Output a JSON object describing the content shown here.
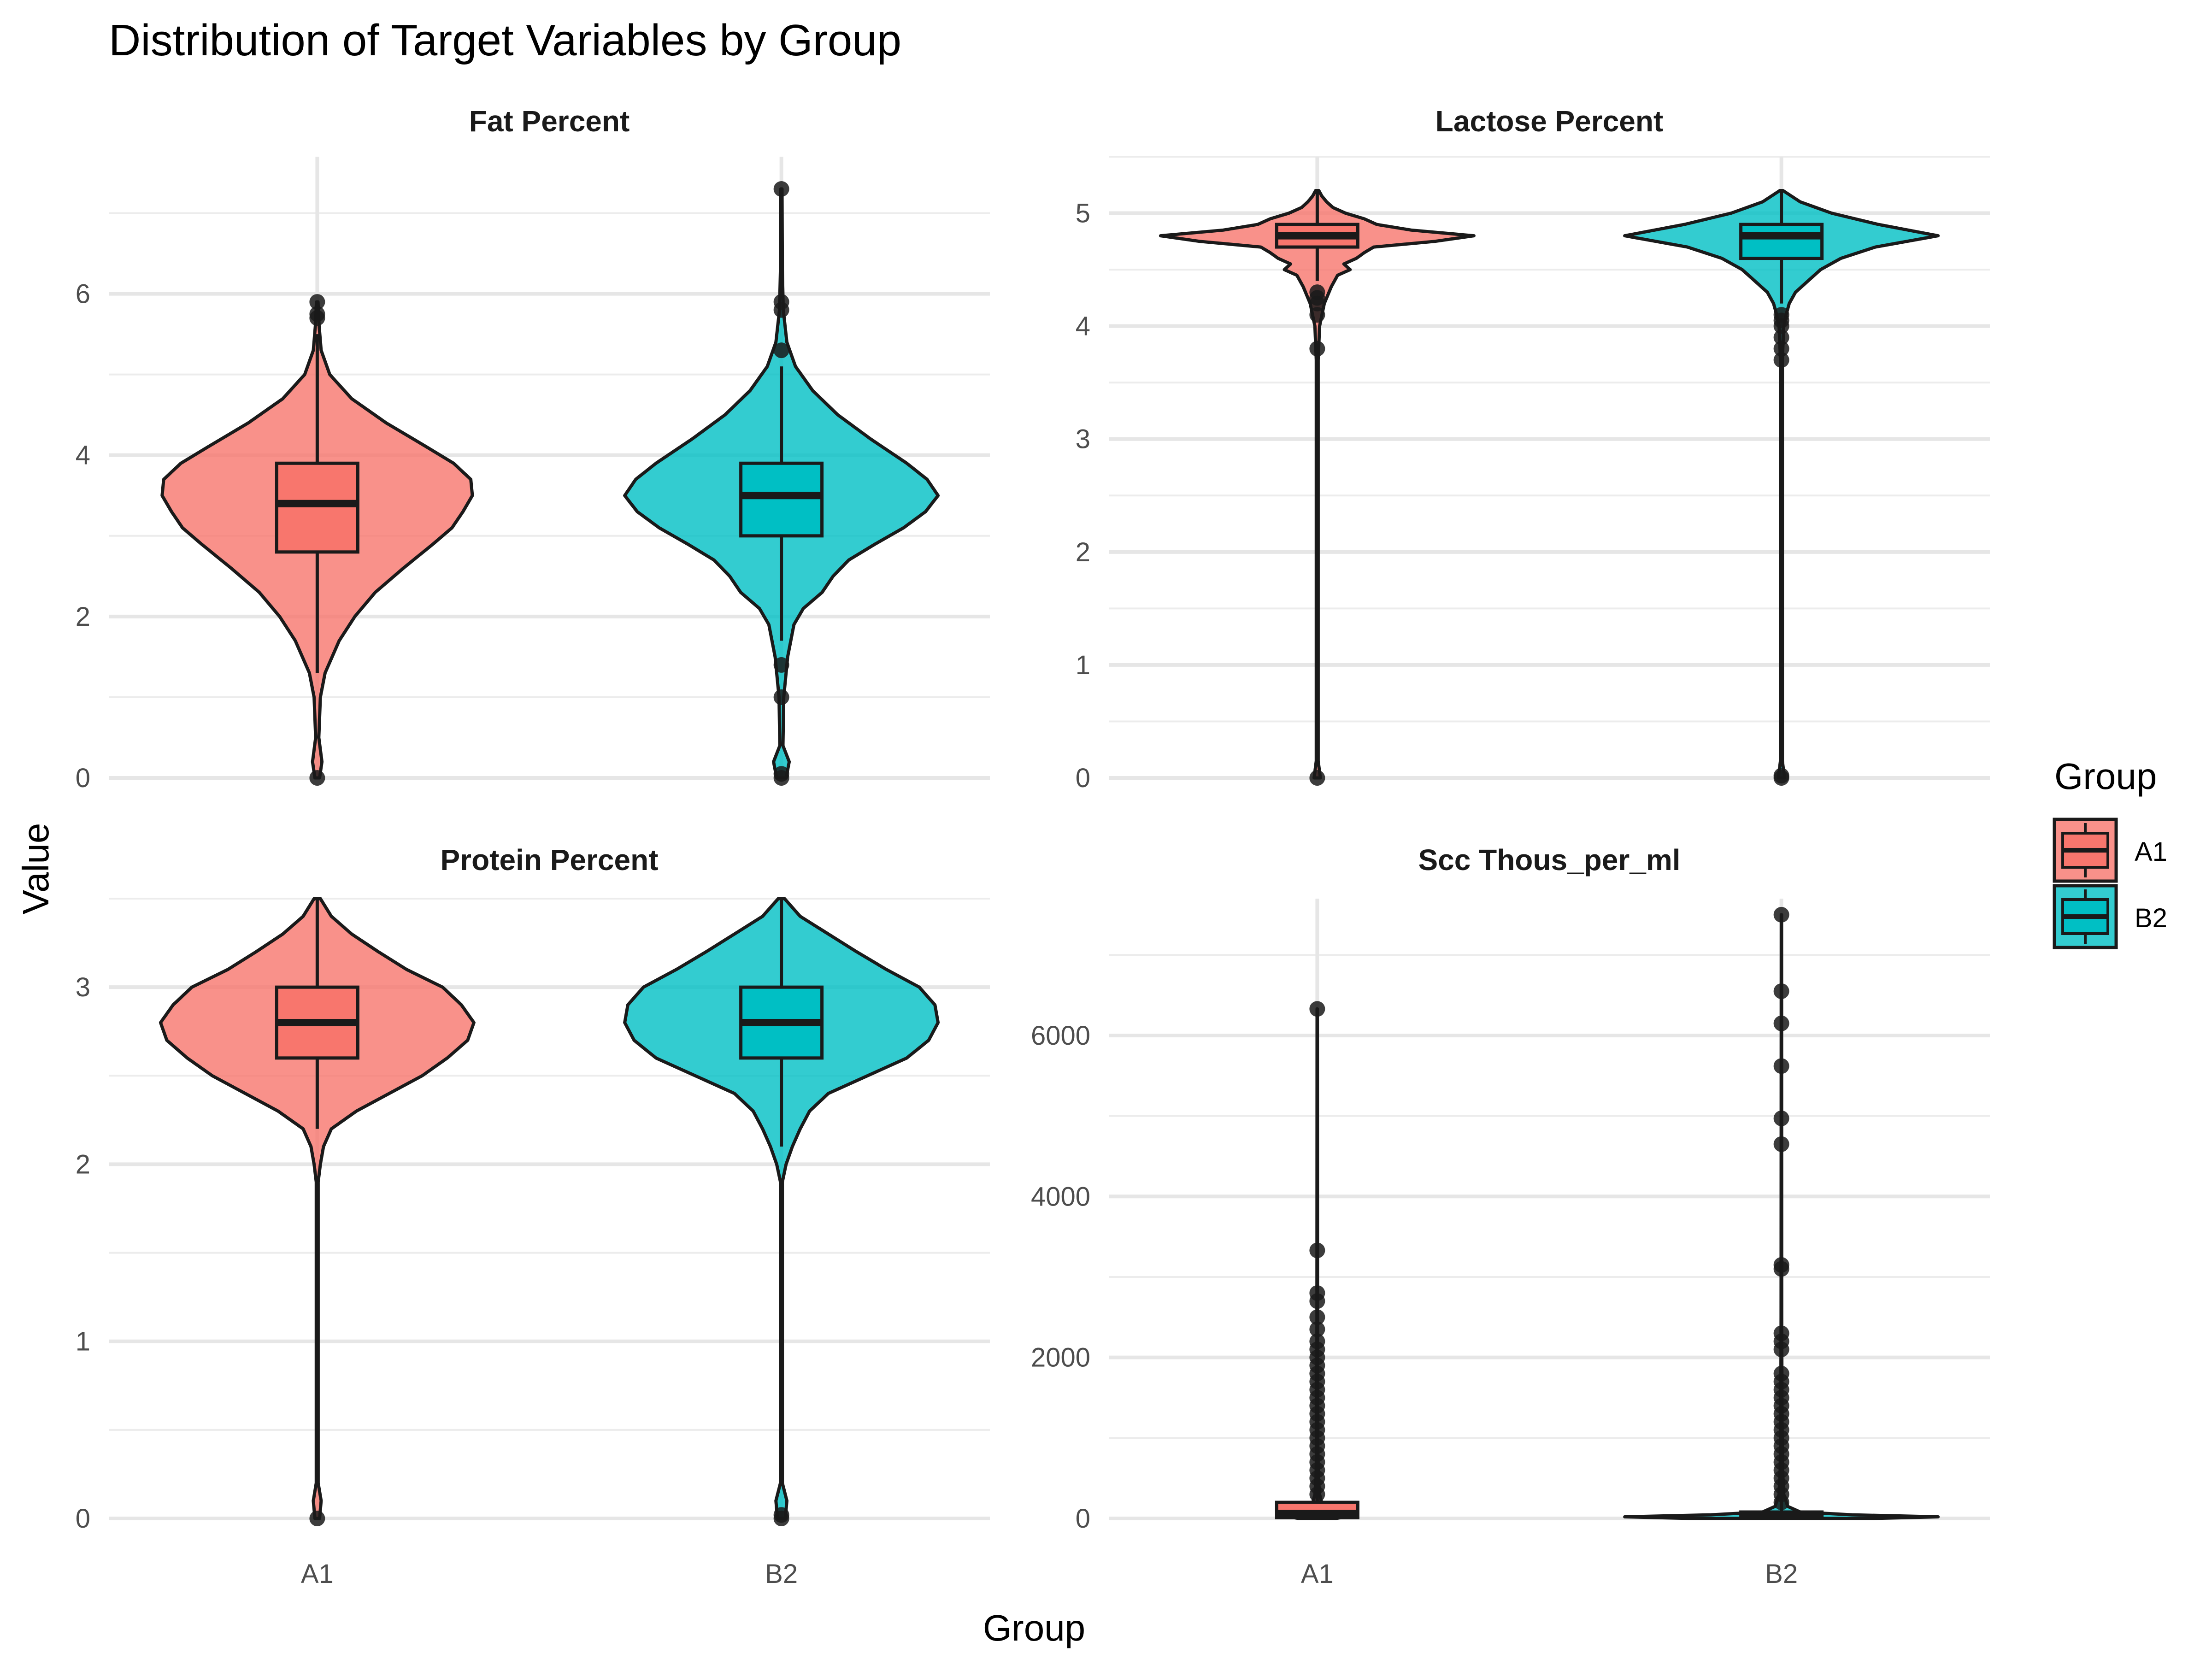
{
  "title": "Distribution of Target Variables by Group",
  "xlabel": "Group",
  "ylabel": "Value",
  "legend": {
    "title": "Group",
    "position": "right",
    "items": [
      {
        "label": "A1",
        "fill": "#F8766D"
      },
      {
        "label": "B2",
        "fill": "#00BFC4"
      }
    ]
  },
  "colors": {
    "A1": "#F8766D",
    "B2": "#00BFC4",
    "outline": "#1a1a1a",
    "grid": "#ebebeb"
  },
  "chart_data": {
    "type": "violin",
    "categories": [
      "A1",
      "B2"
    ],
    "grid": true,
    "facets": [
      {
        "title": "Fat Percent",
        "ylim": [
          0,
          7.7
        ],
        "yticks": [
          0,
          2,
          4,
          6
        ],
        "ytick_labels": [
          "0",
          "2",
          "4",
          "6"
        ],
        "show_y": true,
        "show_x": false,
        "groups": [
          {
            "name": "A1",
            "min": 0.0,
            "max": 5.9,
            "q1": 2.8,
            "median": 3.4,
            "q3": 3.9,
            "whisker_low": 1.3,
            "whisker_high": 5.5,
            "outliers": [
              0.0,
              5.7,
              5.75,
              5.9
            ],
            "density": [
              [
                0,
                0.015
              ],
              [
                0.2,
                0.03
              ],
              [
                0.5,
                0.01
              ],
              [
                1.0,
                0.02
              ],
              [
                1.3,
                0.05
              ],
              [
                1.7,
                0.14
              ],
              [
                2.0,
                0.24
              ],
              [
                2.3,
                0.37
              ],
              [
                2.6,
                0.55
              ],
              [
                2.9,
                0.74
              ],
              [
                3.1,
                0.86
              ],
              [
                3.3,
                0.93
              ],
              [
                3.5,
                0.99
              ],
              [
                3.7,
                0.98
              ],
              [
                3.9,
                0.87
              ],
              [
                4.1,
                0.7
              ],
              [
                4.4,
                0.44
              ],
              [
                4.7,
                0.22
              ],
              [
                5.0,
                0.08
              ],
              [
                5.3,
                0.025
              ],
              [
                5.6,
                0.012
              ],
              [
                5.9,
                0.005
              ]
            ]
          },
          {
            "name": "B2",
            "min": 0.0,
            "max": 7.3,
            "q1": 3.0,
            "median": 3.5,
            "q3": 3.9,
            "whisker_low": 1.7,
            "whisker_high": 5.1,
            "outliers": [
              0.0,
              0.05,
              1.0,
              1.4,
              5.3,
              5.8,
              5.9,
              7.3
            ],
            "density": [
              [
                0,
                0.03
              ],
              [
                0.2,
                0.05
              ],
              [
                0.4,
                0.01
              ],
              [
                1.0,
                0.015
              ],
              [
                1.5,
                0.04
              ],
              [
                1.9,
                0.08
              ],
              [
                2.1,
                0.14
              ],
              [
                2.3,
                0.26
              ],
              [
                2.5,
                0.33
              ],
              [
                2.7,
                0.43
              ],
              [
                2.9,
                0.6
              ],
              [
                3.1,
                0.78
              ],
              [
                3.3,
                0.92
              ],
              [
                3.5,
                1.0
              ],
              [
                3.7,
                0.93
              ],
              [
                3.9,
                0.8
              ],
              [
                4.2,
                0.57
              ],
              [
                4.5,
                0.36
              ],
              [
                4.8,
                0.2
              ],
              [
                5.1,
                0.09
              ],
              [
                5.4,
                0.035
              ],
              [
                5.8,
                0.012
              ],
              [
                6.3,
                0.006
              ],
              [
                7.3,
                0.004
              ]
            ]
          }
        ]
      },
      {
        "title": "Lactose Percent",
        "ylim": [
          0,
          5.5
        ],
        "yticks": [
          0,
          1,
          2,
          3,
          4,
          5
        ],
        "ytick_labels": [
          "0",
          "1",
          "2",
          "3",
          "4",
          "5"
        ],
        "show_y": true,
        "show_x": false,
        "groups": [
          {
            "name": "A1",
            "min": 0.0,
            "max": 5.2,
            "q1": 4.7,
            "median": 4.8,
            "q3": 4.9,
            "whisker_low": 4.4,
            "whisker_high": 5.2,
            "outliers": [
              0.0,
              3.8,
              4.1,
              4.2,
              4.25,
              4.3
            ],
            "density": [
              [
                0,
                0.02
              ],
              [
                0.15,
                0.006
              ],
              [
                3.7,
                0.006
              ],
              [
                4.0,
                0.015
              ],
              [
                4.2,
                0.045
              ],
              [
                4.35,
                0.09
              ],
              [
                4.45,
                0.13
              ],
              [
                4.5,
                0.21
              ],
              [
                4.55,
                0.17
              ],
              [
                4.6,
                0.25
              ],
              [
                4.65,
                0.3
              ],
              [
                4.7,
                0.36
              ],
              [
                4.75,
                0.75
              ],
              [
                4.8,
                1.0
              ],
              [
                4.85,
                0.6
              ],
              [
                4.9,
                0.38
              ],
              [
                4.95,
                0.3
              ],
              [
                5.0,
                0.18
              ],
              [
                5.05,
                0.1
              ],
              [
                5.1,
                0.06
              ],
              [
                5.15,
                0.03
              ],
              [
                5.2,
                0.01
              ]
            ]
          },
          {
            "name": "B2",
            "min": 0.0,
            "max": 5.2,
            "q1": 4.6,
            "median": 4.8,
            "q3": 4.9,
            "whisker_low": 4.2,
            "whisker_high": 5.2,
            "outliers": [
              0.0,
              0.02,
              3.7,
              3.8,
              3.9,
              4.0,
              4.05,
              4.1
            ],
            "density": [
              [
                0,
                0.02
              ],
              [
                0.15,
                0.006
              ],
              [
                3.7,
                0.006
              ],
              [
                4.0,
                0.015
              ],
              [
                4.1,
                0.03
              ],
              [
                4.2,
                0.05
              ],
              [
                4.3,
                0.09
              ],
              [
                4.4,
                0.17
              ],
              [
                4.5,
                0.25
              ],
              [
                4.6,
                0.38
              ],
              [
                4.7,
                0.6
              ],
              [
                4.8,
                1.0
              ],
              [
                4.9,
                0.62
              ],
              [
                5.0,
                0.32
              ],
              [
                5.1,
                0.12
              ],
              [
                5.2,
                0.01
              ]
            ]
          }
        ]
      },
      {
        "title": "Protein Percent",
        "ylim": [
          0,
          3.5
        ],
        "yticks": [
          0,
          1,
          2,
          3
        ],
        "ytick_labels": [
          "0",
          "1",
          "2",
          "3"
        ],
        "show_y": true,
        "show_x": true,
        "groups": [
          {
            "name": "A1",
            "min": 0.0,
            "max": 3.5,
            "q1": 2.6,
            "median": 2.8,
            "q3": 3.0,
            "whisker_low": 2.2,
            "whisker_high": 3.5,
            "outliers": [
              0.0
            ],
            "density": [
              [
                0,
                0.015
              ],
              [
                0.1,
                0.025
              ],
              [
                0.2,
                0.006
              ],
              [
                1.9,
                0.006
              ],
              [
                2.0,
                0.02
              ],
              [
                2.1,
                0.04
              ],
              [
                2.2,
                0.09
              ],
              [
                2.3,
                0.25
              ],
              [
                2.4,
                0.46
              ],
              [
                2.5,
                0.67
              ],
              [
                2.6,
                0.83
              ],
              [
                2.7,
                0.96
              ],
              [
                2.8,
                1.0
              ],
              [
                2.9,
                0.92
              ],
              [
                3.0,
                0.8
              ],
              [
                3.1,
                0.57
              ],
              [
                3.2,
                0.39
              ],
              [
                3.3,
                0.22
              ],
              [
                3.4,
                0.09
              ],
              [
                3.5,
                0.02
              ]
            ]
          },
          {
            "name": "B2",
            "min": 0.0,
            "max": 3.5,
            "q1": 2.6,
            "median": 2.8,
            "q3": 3.0,
            "whisker_low": 2.1,
            "whisker_high": 3.5,
            "outliers": [
              0.0,
              0.02
            ],
            "density": [
              [
                0,
                0.025
              ],
              [
                0.1,
                0.035
              ],
              [
                0.2,
                0.006
              ],
              [
                1.9,
                0.006
              ],
              [
                2.0,
                0.03
              ],
              [
                2.1,
                0.07
              ],
              [
                2.2,
                0.12
              ],
              [
                2.3,
                0.18
              ],
              [
                2.4,
                0.3
              ],
              [
                2.5,
                0.55
              ],
              [
                2.6,
                0.8
              ],
              [
                2.7,
                0.94
              ],
              [
                2.8,
                1.0
              ],
              [
                2.9,
                0.98
              ],
              [
                3.0,
                0.88
              ],
              [
                3.1,
                0.67
              ],
              [
                3.2,
                0.48
              ],
              [
                3.3,
                0.3
              ],
              [
                3.4,
                0.12
              ],
              [
                3.5,
                0.02
              ]
            ]
          }
        ]
      },
      {
        "title": "Scc Thous_per_ml",
        "ylim": [
          0,
          7700
        ],
        "yticks": [
          0,
          2000,
          4000,
          6000
        ],
        "ytick_labels": [
          "0",
          "2000",
          "4000",
          "6000"
        ],
        "show_y": true,
        "show_x": true,
        "groups": [
          {
            "name": "A1",
            "min": 0,
            "max": 6330,
            "q1": 10,
            "median": 60,
            "q3": 200,
            "whisker_low": 0,
            "whisker_high": 6330,
            "outliers": [
              300,
              400,
              500,
              600,
              700,
              800,
              900,
              1000,
              1100,
              1200,
              1300,
              1400,
              1500,
              1600,
              1700,
              1800,
              1900,
              2000,
              2100,
              2200,
              2350,
              2500,
              2700,
              2800,
              3330,
              6330
            ],
            "density": [
              [
                0,
                0.12
              ],
              [
                30,
                0.2
              ],
              [
                60,
                0.16
              ],
              [
                120,
                0.05
              ],
              [
                200,
                0.028
              ],
              [
                300,
                0.015
              ],
              [
                500,
                0.008
              ],
              [
                900,
                0.004
              ],
              [
                1500,
                0.003
              ],
              [
                2500,
                0.002
              ],
              [
                6330,
                0.001
              ]
            ]
          },
          {
            "name": "B2",
            "min": 0,
            "max": 7500,
            "q1": 5,
            "median": 30,
            "q3": 80,
            "whisker_low": 0,
            "whisker_high": 7500,
            "outliers": [
              200,
              300,
              400,
              500,
              600,
              700,
              800,
              900,
              1000,
              1100,
              1200,
              1300,
              1400,
              1500,
              1600,
              1700,
              1800,
              2100,
              2200,
              2300,
              3100,
              3150,
              4650,
              4970,
              5620,
              6150,
              6550,
              7500
            ],
            "density": [
              [
                0,
                0.58
              ],
              [
                20,
                1.0
              ],
              [
                45,
                0.45
              ],
              [
                80,
                0.12
              ],
              [
                150,
                0.04
              ],
              [
                300,
                0.015
              ],
              [
                600,
                0.008
              ],
              [
                1200,
                0.004
              ],
              [
                2500,
                0.002
              ],
              [
                7500,
                0.001
              ]
            ]
          }
        ]
      }
    ]
  }
}
